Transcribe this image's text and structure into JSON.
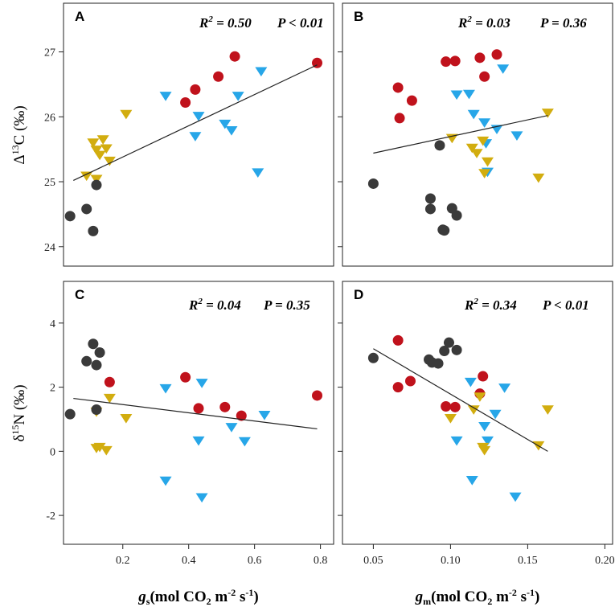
{
  "colors": {
    "red": "#c0121c",
    "blue": "#27a6e8",
    "yellow": "#d2ad0f",
    "dark": "#3a3a3a",
    "axis": "#222222"
  },
  "shared_axes": {
    "top_ylabel": {
      "prefix": "Δ",
      "sup": "13",
      "rest": "C (‰)"
    },
    "bottom_ylabel": {
      "prefix": "δ",
      "sup": "15",
      "rest": "N (‰)"
    },
    "left_xlabel": {
      "var": "g",
      "sub": "s",
      "unit": "(mol CO",
      "unit_sub": "2",
      "unit_rest": " m",
      "exp1": "-2",
      "mid": " s",
      "exp2": "-1",
      "close": ")"
    },
    "right_xlabel": {
      "var": "g",
      "sub": "m",
      "unit": "(mol CO",
      "unit_sub": "2",
      "unit_rest": " m",
      "exp1": "-2",
      "mid": " s",
      "exp2": "-1",
      "close": ")"
    }
  },
  "chart_data": [
    {
      "panel": "A",
      "type": "scatter",
      "stat_r2": "R² = 0.50",
      "stat_r2_value": "0.50",
      "stat_p": "P < 0.01",
      "xlim": [
        0.02,
        0.84
      ],
      "ylim": [
        23.7,
        27.75
      ],
      "xticks": [],
      "xtick_labels": [],
      "yticks": [
        24,
        25,
        26,
        27
      ],
      "ytick_labels": [
        "24",
        "25",
        "26",
        "27"
      ],
      "fit": {
        "x": [
          0.05,
          0.79
        ],
        "y": [
          25.02,
          26.8
        ]
      },
      "series": [
        {
          "name": "red circles",
          "color": "red",
          "marker": "circle",
          "x": [
            0.39,
            0.42,
            0.49,
            0.54,
            0.79
          ],
          "y": [
            26.22,
            26.42,
            26.62,
            26.93,
            26.83
          ]
        },
        {
          "name": "blue triangles",
          "color": "blue",
          "marker": "triangle",
          "x": [
            0.33,
            0.42,
            0.43,
            0.51,
            0.53,
            0.55,
            0.61,
            0.62
          ],
          "y": [
            26.33,
            25.71,
            26.02,
            25.9,
            25.8,
            26.33,
            25.15,
            26.71
          ]
        },
        {
          "name": "yellow triangles",
          "color": "yellow",
          "marker": "triangle",
          "x": [
            0.09,
            0.11,
            0.12,
            0.13,
            0.14,
            0.15,
            0.16,
            0.21,
            0.12
          ],
          "y": [
            25.1,
            25.61,
            25.5,
            25.42,
            25.66,
            25.52,
            25.33,
            26.05,
            25.05
          ]
        },
        {
          "name": "dark circles",
          "color": "dark",
          "marker": "circle",
          "x": [
            0.04,
            0.09,
            0.11,
            0.12
          ],
          "y": [
            24.47,
            24.58,
            24.24,
            24.95
          ]
        }
      ]
    },
    {
      "panel": "B",
      "type": "scatter",
      "stat_r2": "R² = 0.03",
      "stat_r2_value": "0.03",
      "stat_p": "P = 0.36",
      "xlim": [
        0.03,
        0.205
      ],
      "ylim": [
        23.7,
        27.75
      ],
      "xticks": [],
      "xtick_labels": [],
      "yticks": [
        24,
        25,
        26,
        27
      ],
      "ytick_labels": [],
      "fit": {
        "x": [
          0.05,
          0.163
        ],
        "y": [
          25.44,
          26.02
        ]
      },
      "series": [
        {
          "name": "red circles",
          "color": "red",
          "marker": "circle",
          "x": [
            0.066,
            0.067,
            0.075,
            0.097,
            0.103,
            0.119,
            0.122,
            0.13
          ],
          "y": [
            26.45,
            25.98,
            26.25,
            26.85,
            26.86,
            26.91,
            26.62,
            26.96
          ]
        },
        {
          "name": "blue triangles",
          "color": "blue",
          "marker": "triangle",
          "x": [
            0.104,
            0.112,
            0.115,
            0.122,
            0.123,
            0.124,
            0.13,
            0.134,
            0.143
          ],
          "y": [
            26.35,
            26.36,
            26.05,
            25.92,
            25.6,
            25.16,
            25.82,
            26.75,
            25.72
          ]
        },
        {
          "name": "yellow triangles",
          "color": "yellow",
          "marker": "triangle",
          "x": [
            0.101,
            0.114,
            0.117,
            0.121,
            0.122,
            0.124,
            0.157,
            0.163
          ],
          "y": [
            25.68,
            25.53,
            25.45,
            25.64,
            25.14,
            25.32,
            25.07,
            26.07
          ]
        },
        {
          "name": "dark circles",
          "color": "dark",
          "marker": "circle",
          "x": [
            0.05,
            0.087,
            0.087,
            0.096,
            0.101,
            0.104,
            0.093,
            0.095
          ],
          "y": [
            24.97,
            24.74,
            24.58,
            24.25,
            24.59,
            24.48,
            25.56,
            24.26
          ]
        }
      ]
    },
    {
      "panel": "C",
      "type": "scatter",
      "stat_r2": "R² = 0.04",
      "stat_r2_value": "0.04",
      "stat_p": "P = 0.35",
      "xlim": [
        0.02,
        0.84
      ],
      "ylim": [
        -2.9,
        5.3
      ],
      "xticks": [
        0.2,
        0.4,
        0.6,
        0.8
      ],
      "xtick_labels": [
        "0.2",
        "0.4",
        "0.6",
        "0.8"
      ],
      "yticks": [
        -2,
        0,
        2,
        4
      ],
      "ytick_labels": [
        "-2",
        "0",
        "2",
        "4"
      ],
      "fit": {
        "x": [
          0.05,
          0.79
        ],
        "y": [
          1.65,
          0.7
        ]
      },
      "series": [
        {
          "name": "red circles",
          "color": "red",
          "marker": "circle",
          "x": [
            0.16,
            0.39,
            0.43,
            0.51,
            0.56,
            0.79
          ],
          "y": [
            2.16,
            2.31,
            1.34,
            1.38,
            1.11,
            1.74
          ]
        },
        {
          "name": "blue triangles",
          "color": "blue",
          "marker": "triangle",
          "x": [
            0.33,
            0.33,
            0.43,
            0.44,
            0.44,
            0.53,
            0.57,
            0.63
          ],
          "y": [
            1.98,
            -0.9,
            0.35,
            2.15,
            -1.42,
            0.77,
            0.33,
            1.15
          ]
        },
        {
          "name": "yellow triangles",
          "color": "yellow",
          "marker": "triangle",
          "x": [
            0.12,
            0.12,
            0.13,
            0.15,
            0.16,
            0.21
          ],
          "y": [
            1.25,
            0.12,
            0.15,
            0.05,
            1.68,
            1.05
          ]
        },
        {
          "name": "dark circles",
          "color": "dark",
          "marker": "circle",
          "x": [
            0.04,
            0.09,
            0.11,
            0.12,
            0.13,
            0.12
          ],
          "y": [
            1.16,
            2.81,
            3.35,
            2.69,
            3.08,
            1.3
          ]
        }
      ]
    },
    {
      "panel": "D",
      "type": "scatter",
      "stat_r2": "R² = 0.34",
      "stat_r2_value": "0.34",
      "stat_p": "P < 0.01",
      "xlim": [
        0.03,
        0.205
      ],
      "ylim": [
        -2.9,
        5.3
      ],
      "xticks": [
        0.05,
        0.1,
        0.15,
        0.2
      ],
      "xtick_labels": [
        "0.05",
        "0.10",
        "0.15",
        "0.20"
      ],
      "yticks": [
        -2,
        0,
        2,
        4
      ],
      "ytick_labels": [],
      "fit": {
        "x": [
          0.05,
          0.163
        ],
        "y": [
          3.2,
          0.0
        ]
      },
      "series": [
        {
          "name": "red circles",
          "color": "red",
          "marker": "circle",
          "x": [
            0.066,
            0.066,
            0.074,
            0.097,
            0.103,
            0.119,
            0.121
          ],
          "y": [
            3.46,
            2.0,
            2.19,
            1.4,
            1.38,
            1.8,
            2.34
          ]
        },
        {
          "name": "blue triangles",
          "color": "blue",
          "marker": "triangle",
          "x": [
            0.104,
            0.113,
            0.114,
            0.122,
            0.124,
            0.129,
            0.135,
            0.142
          ],
          "y": [
            0.35,
            2.18,
            -0.88,
            0.8,
            0.35,
            1.18,
            2.0,
            -1.4
          ]
        },
        {
          "name": "yellow triangles",
          "color": "yellow",
          "marker": "triangle",
          "x": [
            0.1,
            0.115,
            0.119,
            0.121,
            0.122,
            0.157,
            0.163
          ],
          "y": [
            1.05,
            1.32,
            1.72,
            0.15,
            0.05,
            0.2,
            1.32
          ]
        },
        {
          "name": "dark circles",
          "color": "dark",
          "marker": "circle",
          "x": [
            0.05,
            0.086,
            0.088,
            0.092,
            0.096,
            0.099,
            0.104
          ],
          "y": [
            2.91,
            2.86,
            2.77,
            2.74,
            3.13,
            3.39,
            3.16
          ]
        }
      ]
    }
  ]
}
